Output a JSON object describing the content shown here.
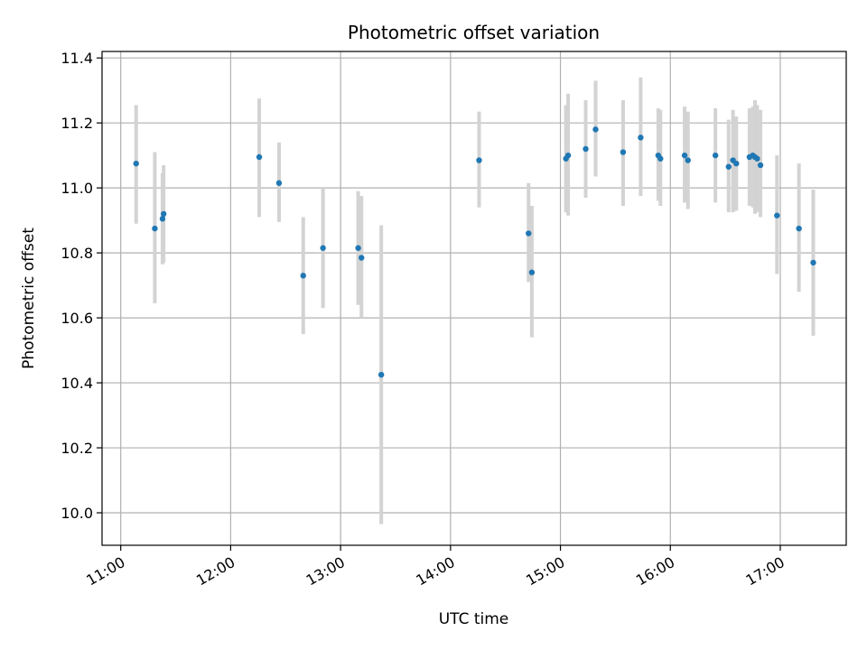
{
  "chart_data": {
    "type": "scatter",
    "title": "Photometric offset variation",
    "xlabel": "UTC time",
    "ylabel": "Photometric offset",
    "xlim": [
      10.83,
      17.6
    ],
    "ylim": [
      9.9,
      11.42
    ],
    "grid": true,
    "x_ticks": [
      {
        "value": 11,
        "label": "11:00"
      },
      {
        "value": 12,
        "label": "12:00"
      },
      {
        "value": 13,
        "label": "13:00"
      },
      {
        "value": 14,
        "label": "14:00"
      },
      {
        "value": 15,
        "label": "15:00"
      },
      {
        "value": 16,
        "label": "16:00"
      },
      {
        "value": 17,
        "label": "17:00"
      }
    ],
    "y_ticks": [
      {
        "value": 10.0,
        "label": "10.0"
      },
      {
        "value": 10.2,
        "label": "10.2"
      },
      {
        "value": 10.4,
        "label": "10.4"
      },
      {
        "value": 10.6,
        "label": "10.6"
      },
      {
        "value": 10.8,
        "label": "10.8"
      },
      {
        "value": 11.0,
        "label": "11.0"
      },
      {
        "value": 11.2,
        "label": "11.2"
      },
      {
        "value": 11.4,
        "label": "11.4"
      }
    ],
    "colors": {
      "point": "#1f77b4",
      "errorbar": "#d3d3d3",
      "grid": "#b0b0b0",
      "axis": "#000000"
    },
    "series": [
      {
        "name": "Photometric offset",
        "points": [
          {
            "x": 11.14,
            "y": 11.075,
            "lo": 10.89,
            "hi": 11.255
          },
          {
            "x": 11.31,
            "y": 10.875,
            "lo": 10.645,
            "hi": 11.11
          },
          {
            "x": 11.38,
            "y": 10.905,
            "lo": 10.765,
            "hi": 11.045
          },
          {
            "x": 11.39,
            "y": 10.92,
            "lo": 10.77,
            "hi": 11.07
          },
          {
            "x": 12.26,
            "y": 11.095,
            "lo": 10.91,
            "hi": 11.275
          },
          {
            "x": 12.44,
            "y": 11.015,
            "lo": 10.895,
            "hi": 11.14
          },
          {
            "x": 12.66,
            "y": 10.73,
            "lo": 10.55,
            "hi": 10.91
          },
          {
            "x": 12.84,
            "y": 10.815,
            "lo": 10.63,
            "hi": 11.0
          },
          {
            "x": 13.16,
            "y": 10.815,
            "lo": 10.64,
            "hi": 10.99
          },
          {
            "x": 13.19,
            "y": 10.785,
            "lo": 10.6,
            "hi": 10.975
          },
          {
            "x": 13.37,
            "y": 10.425,
            "lo": 9.965,
            "hi": 10.885
          },
          {
            "x": 14.26,
            "y": 11.085,
            "lo": 10.94,
            "hi": 11.235
          },
          {
            "x": 14.71,
            "y": 10.86,
            "lo": 10.71,
            "hi": 11.015
          },
          {
            "x": 14.74,
            "y": 10.74,
            "lo": 10.54,
            "hi": 10.945
          },
          {
            "x": 15.05,
            "y": 11.09,
            "lo": 10.925,
            "hi": 11.255
          },
          {
            "x": 15.07,
            "y": 11.1,
            "lo": 10.915,
            "hi": 11.29
          },
          {
            "x": 15.23,
            "y": 11.12,
            "lo": 10.97,
            "hi": 11.27
          },
          {
            "x": 15.32,
            "y": 11.18,
            "lo": 11.035,
            "hi": 11.33
          },
          {
            "x": 15.57,
            "y": 11.11,
            "lo": 10.945,
            "hi": 11.27
          },
          {
            "x": 15.73,
            "y": 11.155,
            "lo": 10.975,
            "hi": 11.34
          },
          {
            "x": 15.89,
            "y": 11.1,
            "lo": 10.96,
            "hi": 11.245
          },
          {
            "x": 15.91,
            "y": 11.09,
            "lo": 10.945,
            "hi": 11.24
          },
          {
            "x": 16.13,
            "y": 11.1,
            "lo": 10.955,
            "hi": 11.25
          },
          {
            "x": 16.16,
            "y": 11.085,
            "lo": 10.935,
            "hi": 11.235
          },
          {
            "x": 16.41,
            "y": 11.1,
            "lo": 10.955,
            "hi": 11.245
          },
          {
            "x": 16.53,
            "y": 11.065,
            "lo": 10.925,
            "hi": 11.21
          },
          {
            "x": 16.57,
            "y": 11.085,
            "lo": 10.925,
            "hi": 11.24
          },
          {
            "x": 16.6,
            "y": 11.075,
            "lo": 10.93,
            "hi": 11.22
          },
          {
            "x": 16.72,
            "y": 11.095,
            "lo": 10.945,
            "hi": 11.245
          },
          {
            "x": 16.75,
            "y": 11.1,
            "lo": 10.94,
            "hi": 11.25
          },
          {
            "x": 16.77,
            "y": 11.095,
            "lo": 10.92,
            "hi": 11.27
          },
          {
            "x": 16.79,
            "y": 11.09,
            "lo": 10.925,
            "hi": 11.255
          },
          {
            "x": 16.82,
            "y": 11.07,
            "lo": 10.91,
            "hi": 11.24
          },
          {
            "x": 16.97,
            "y": 10.915,
            "lo": 10.735,
            "hi": 11.1
          },
          {
            "x": 17.17,
            "y": 10.875,
            "lo": 10.68,
            "hi": 11.075
          },
          {
            "x": 17.3,
            "y": 10.77,
            "lo": 10.545,
            "hi": 10.995
          }
        ]
      }
    ]
  }
}
